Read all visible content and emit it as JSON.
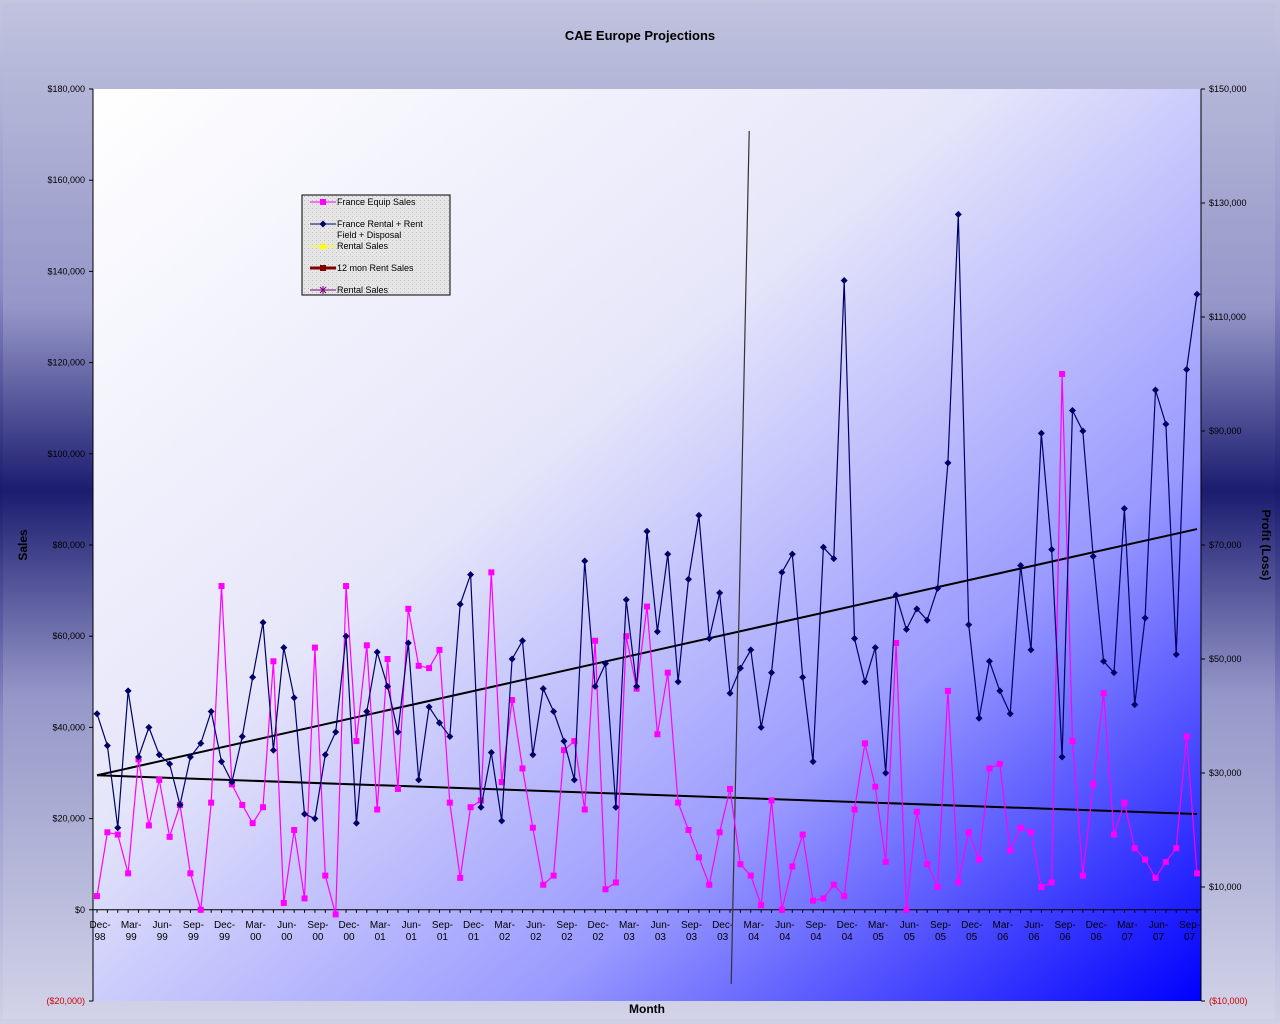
{
  "chart_data": {
    "type": "line",
    "title": "CAE Europe Projections",
    "xlabel": "Month",
    "ylabel": "Sales",
    "y2label": "Profit (Loss)",
    "ylim": [
      -20000,
      180000
    ],
    "y2lim": [
      -10000,
      150000
    ],
    "y_ticks": [
      "$180,000",
      "$160,000",
      "$140,000",
      "$120,000",
      "$100,000",
      "$80,000",
      "$60,000",
      "$40,000",
      "$20,000",
      "$0",
      "($20,000)"
    ],
    "y_tick_values": [
      180000,
      160000,
      140000,
      120000,
      100000,
      80000,
      60000,
      40000,
      20000,
      0,
      -20000
    ],
    "y2_ticks": [
      "$150,000",
      "$130,000",
      "$110,000",
      "$90,000",
      "$70,000",
      "$50,000",
      "$30,000",
      "$10,000",
      "($10,000)"
    ],
    "y2_tick_values": [
      150000,
      130000,
      110000,
      90000,
      70000,
      50000,
      30000,
      10000,
      -10000
    ],
    "x_tick_labels": [
      [
        "Dec-",
        "98"
      ],
      [
        "Mar-",
        "99"
      ],
      [
        "Jun-",
        "99"
      ],
      [
        "Sep-",
        "99"
      ],
      [
        "Dec-",
        "99"
      ],
      [
        "Mar-",
        "00"
      ],
      [
        "Jun-",
        "00"
      ],
      [
        "Sep-",
        "00"
      ],
      [
        "Dec-",
        "00"
      ],
      [
        "Mar-",
        "01"
      ],
      [
        "Jun-",
        "01"
      ],
      [
        "Sep-",
        "01"
      ],
      [
        "Dec-",
        "01"
      ],
      [
        "Mar-",
        "02"
      ],
      [
        "Jun-",
        "02"
      ],
      [
        "Sep-",
        "02"
      ],
      [
        "Dec-",
        "02"
      ],
      [
        "Mar-",
        "03"
      ],
      [
        "Jun-",
        "03"
      ],
      [
        "Sep-",
        "03"
      ],
      [
        "Dec-",
        "03"
      ],
      [
        "Mar-",
        "04"
      ],
      [
        "Jun-",
        "04"
      ],
      [
        "Sep-",
        "04"
      ],
      [
        "Dec-",
        "04"
      ],
      [
        "Mar-",
        "05"
      ],
      [
        "Jun-",
        "05"
      ],
      [
        "Sep-",
        "05"
      ],
      [
        "Dec-",
        "05"
      ],
      [
        "Mar-",
        "06"
      ],
      [
        "Jun-",
        "06"
      ],
      [
        "Sep-",
        "06"
      ],
      [
        "Dec-",
        "06"
      ],
      [
        "Mar-",
        "07"
      ],
      [
        "Jun-",
        "07"
      ],
      [
        "Sep-",
        "07"
      ]
    ],
    "series": [
      {
        "name": "France Equip Sales",
        "color": "#ff00ff",
        "marker": "square",
        "axis": "left",
        "values": [
          3000,
          17000,
          16500,
          8000,
          33000,
          18500,
          28500,
          16000,
          23000,
          8000,
          0,
          23500,
          71000,
          27500,
          23000,
          19000,
          22500,
          54500,
          1500,
          17500,
          2500,
          57500,
          7500,
          -1000,
          71000,
          37000,
          58000,
          22000,
          55000,
          26500,
          66000,
          53500,
          53000,
          57000,
          23500,
          7000,
          22500,
          24000,
          74000,
          28000,
          46000,
          31000,
          18000,
          5500,
          7500,
          35000,
          37000,
          22000,
          59000,
          4500,
          6000,
          60000,
          48500,
          66500,
          38500,
          52000,
          23500,
          17500,
          11500,
          5500,
          17000,
          26500,
          10000,
          7500,
          1000,
          24000,
          0,
          9500,
          16500,
          2000,
          2500,
          5500,
          3000,
          22000,
          36500,
          27000,
          10500,
          58500,
          0,
          21500,
          10000,
          5000,
          48000,
          6000,
          17000,
          11000,
          31000,
          32000,
          13000,
          18000,
          17000,
          5000,
          6000,
          117500,
          37000,
          7500,
          27500,
          47500,
          16500,
          23500,
          13500,
          11000,
          7000,
          10500,
          13500,
          38000,
          8000
        ]
      },
      {
        "name": "France Rental + Rent Field + Disposal",
        "color": "#000066",
        "marker": "diamond",
        "axis": "left",
        "values": [
          43000,
          36000,
          18000,
          48000,
          33500,
          40000,
          34000,
          32000,
          23000,
          33500,
          36500,
          43500,
          32500,
          28000,
          38000,
          51000,
          63000,
          35000,
          57500,
          46500,
          21000,
          20000,
          34000,
          39000,
          60000,
          19000,
          43500,
          56500,
          49000,
          39000,
          58500,
          28500,
          44500,
          41000,
          38000,
          67000,
          73500,
          22500,
          34500,
          19500,
          55000,
          59000,
          34000,
          48500,
          43500,
          37000,
          28500,
          76500,
          49000,
          54000,
          22500,
          68000,
          49000,
          83000,
          61000,
          78000,
          50000,
          72500,
          86500,
          59500,
          69500,
          47500,
          53000,
          57000,
          40000,
          52000,
          74000,
          78000,
          51000,
          32500,
          79500,
          77000,
          138000,
          59500,
          50000,
          57500,
          30000,
          69000,
          61500,
          66000,
          63500,
          70500,
          98000,
          152500,
          62500,
          42000,
          54500,
          48000,
          43000,
          75500,
          57000,
          104500,
          79000,
          33500,
          109500,
          105000,
          77500,
          54500,
          52000,
          88000,
          45000,
          64000,
          114000,
          106500,
          56000,
          118500,
          135000
        ]
      }
    ],
    "trendlines": [
      {
        "start": 29500,
        "end": 83500,
        "color": "#000000"
      },
      {
        "start": 29500,
        "end": 21000,
        "color": "#000000"
      }
    ],
    "vertical_marker": {
      "x_index": 61.5
    },
    "legend": {
      "placement": "top-left",
      "entries": [
        {
          "label": "France Equip Sales",
          "color": "#ff00ff",
          "marker": "square"
        },
        {
          "label": "France Rental + Rent Field + Disposal",
          "color": "#000066",
          "marker": "diamond"
        },
        {
          "label": "Rental Sales",
          "color": "#ffff00",
          "marker": "triangle"
        },
        {
          "label": "12 mon Rent Sales",
          "color": "#800000",
          "marker": "square"
        },
        {
          "label": "Rental Sales",
          "color": "#800080",
          "marker": "star"
        }
      ]
    },
    "grid": false
  }
}
